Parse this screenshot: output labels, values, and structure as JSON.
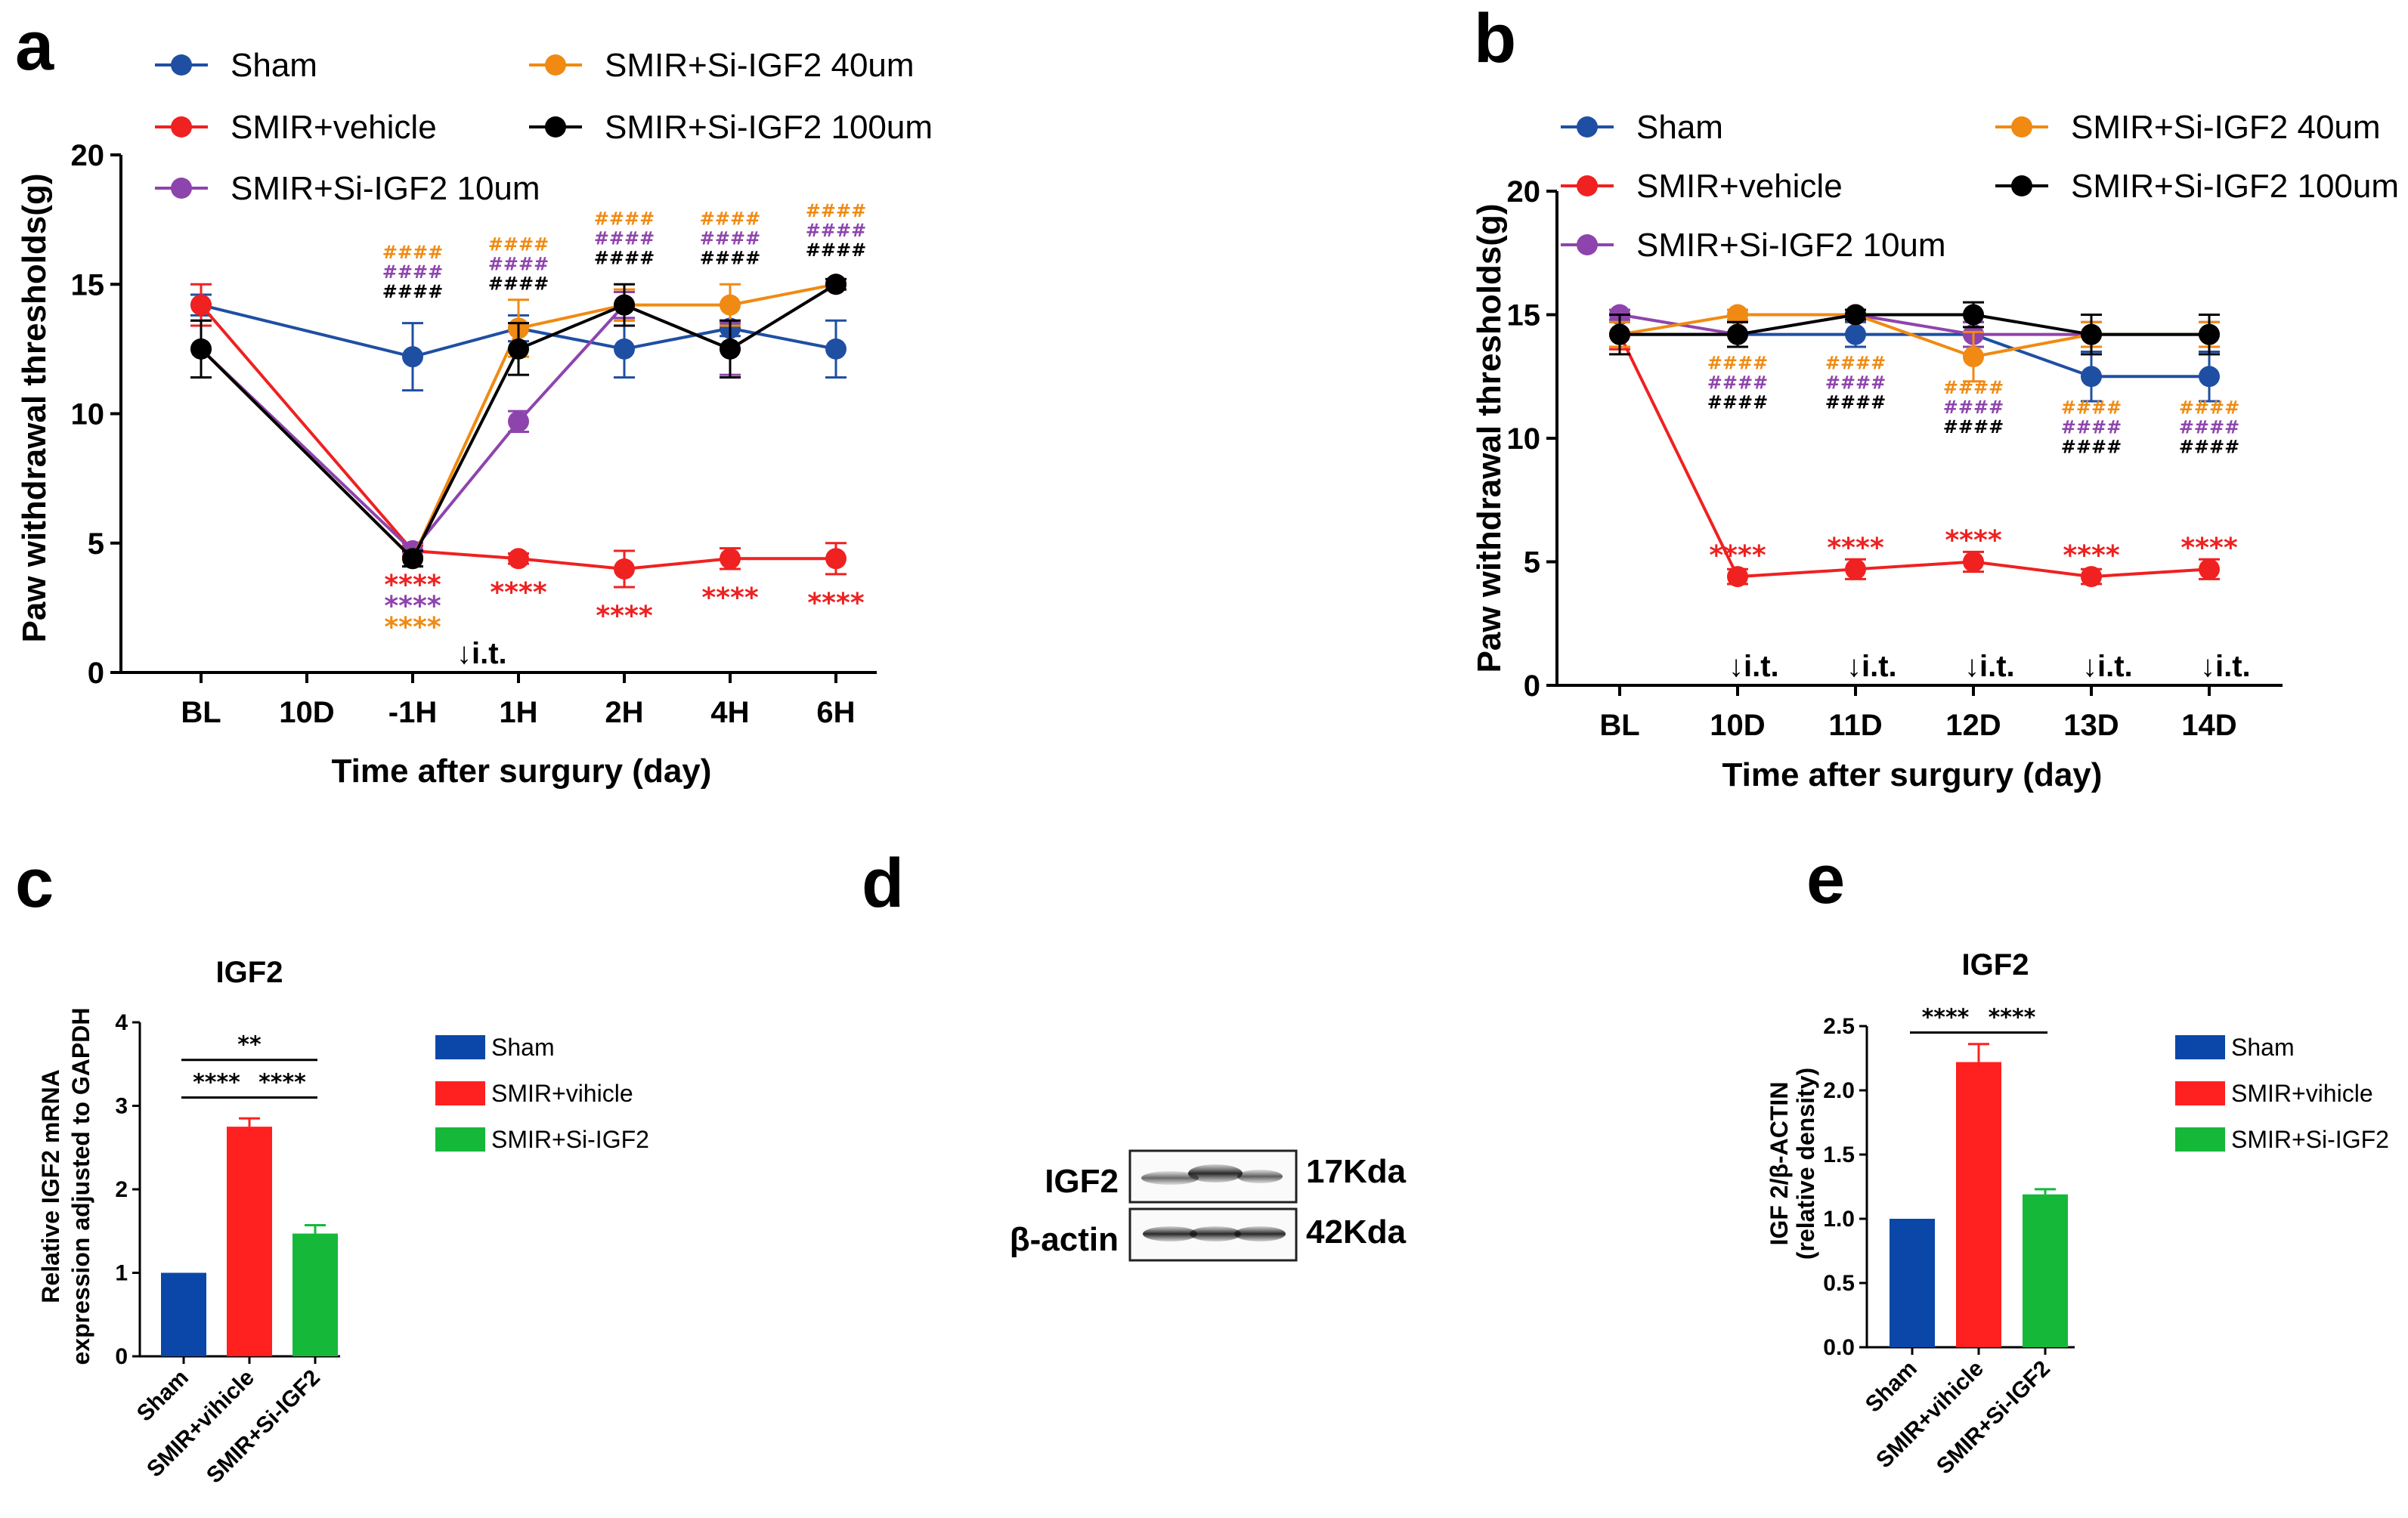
{
  "colors": {
    "sham": "#1f4fa3",
    "vehicle": "#ef2121",
    "si10": "#8e44ad",
    "si40": "#f08a12",
    "si100": "#000000",
    "bar_sham": "#0a47a8",
    "bar_vehicle": "#ff2020",
    "bar_si": "#16b83a"
  },
  "panels": {
    "a": "a",
    "b": "b",
    "c": "c",
    "d": "d",
    "e": "e"
  },
  "chart_data": [
    {
      "id": "a",
      "type": "line",
      "ylabel": "Paw  withdrawal thresholds(g)",
      "xlabel": "Time after surgury (day)",
      "ylim": [
        0,
        20
      ],
      "yticks": [
        "0",
        "5",
        "10",
        "15",
        "20"
      ],
      "categories": [
        "BL",
        "10D",
        "-1H",
        "1H",
        "2H",
        "4H",
        "6H"
      ],
      "legend": [
        {
          "name": "Sham",
          "color_key": "sham"
        },
        {
          "name": "SMIR+vehicle",
          "color_key": "vehicle"
        },
        {
          "name": "SMIR+Si-IGF2 10um",
          "color_key": "si10"
        },
        {
          "name": "SMIR+Si-IGF2 40um",
          "color_key": "si40"
        },
        {
          "name": "SMIR+Si-IGF2 100um",
          "color_key": "si100"
        }
      ],
      "series": [
        {
          "name": "Sham",
          "color_key": "sham",
          "x": [
            0,
            2,
            3,
            4,
            5,
            6
          ],
          "values": [
            14.2,
            12.2,
            13.3,
            12.5,
            13.3,
            12.5
          ],
          "err": [
            0.4,
            1.3,
            0.5,
            1.1,
            0.3,
            1.1
          ]
        },
        {
          "name": "SMIR+vehicle",
          "color_key": "vehicle",
          "x": [
            0,
            2,
            3,
            4,
            5,
            6
          ],
          "values": [
            14.2,
            4.7,
            4.4,
            4.0,
            4.4,
            4.4
          ],
          "err": [
            0.8,
            0.2,
            0.2,
            0.7,
            0.4,
            0.6
          ]
        },
        {
          "name": "SMIR+Si-IGF2 10um",
          "color_key": "si10",
          "x": [
            0,
            2,
            3,
            4,
            5,
            6
          ],
          "values": [
            12.5,
            4.7,
            9.7,
            14.2,
            12.5,
            15.0
          ],
          "err": [
            1.1,
            0.3,
            0.4,
            0.5,
            1.0,
            0.2
          ]
        },
        {
          "name": "SMIR+Si-IGF2 40um",
          "color_key": "si40",
          "x": [
            0,
            2,
            3,
            4,
            5,
            6
          ],
          "values": [
            12.5,
            4.4,
            13.3,
            14.2,
            14.2,
            15.0
          ],
          "err": [
            1.1,
            0.3,
            1.1,
            0.6,
            0.8,
            0.2
          ]
        },
        {
          "name": "SMIR+Si-IGF2 100um",
          "color_key": "si100",
          "x": [
            0,
            2,
            3,
            4,
            5,
            6
          ],
          "values": [
            12.5,
            4.4,
            12.5,
            14.2,
            12.5,
            15.0
          ],
          "err": [
            1.1,
            0.3,
            1.0,
            0.8,
            1.1,
            0.2
          ]
        }
      ],
      "stars": [
        {
          "x": 2,
          "lines": [
            {
              "text": "****",
              "color_key": "vehicle"
            },
            {
              "text": "****",
              "color_key": "si10"
            },
            {
              "text": "****",
              "color_key": "si40"
            }
          ]
        },
        {
          "x": 3,
          "lines": [
            {
              "text": "****",
              "color_key": "vehicle"
            }
          ]
        },
        {
          "x": 4,
          "lines": [
            {
              "text": "****",
              "color_key": "vehicle"
            }
          ]
        },
        {
          "x": 5,
          "lines": [
            {
              "text": "****",
              "color_key": "vehicle"
            }
          ]
        },
        {
          "x": 6,
          "lines": [
            {
              "text": "****",
              "color_key": "vehicle"
            }
          ]
        }
      ],
      "hashes": [
        {
          "x": 2,
          "y": 16.0,
          "lines": [
            {
              "text": "####",
              "color_key": "si40"
            },
            {
              "text": "####",
              "color_key": "si10"
            },
            {
              "text": "####",
              "color_key": "si100"
            }
          ]
        },
        {
          "x": 3,
          "y": 16.3,
          "lines": [
            {
              "text": "####",
              "color_key": "si40"
            },
            {
              "text": "####",
              "color_key": "si10"
            },
            {
              "text": "####",
              "color_key": "si100"
            }
          ]
        },
        {
          "x": 4,
          "y": 17.3,
          "lines": [
            {
              "text": "####",
              "color_key": "si40"
            },
            {
              "text": "####",
              "color_key": "si10"
            },
            {
              "text": "####",
              "color_key": "si100"
            }
          ]
        },
        {
          "x": 5,
          "y": 17.3,
          "lines": [
            {
              "text": "####",
              "color_key": "si40"
            },
            {
              "text": "####",
              "color_key": "si10"
            },
            {
              "text": "####",
              "color_key": "si100"
            }
          ]
        },
        {
          "x": 6,
          "y": 17.6,
          "lines": [
            {
              "text": "####",
              "color_key": "si40"
            },
            {
              "text": "####",
              "color_key": "si10"
            },
            {
              "text": "####",
              "color_key": "si100"
            }
          ]
        }
      ],
      "it_label": "↓i.t.",
      "it_x": 2.5
    },
    {
      "id": "b",
      "type": "line",
      "ylabel": "Paw  withdrawal thresholds(g)",
      "xlabel": "Time after surgury (day)",
      "ylim": [
        0,
        20
      ],
      "yticks": [
        "0",
        "5",
        "10",
        "15",
        "20"
      ],
      "categories": [
        "BL",
        "10D",
        "11D",
        "12D",
        "13D",
        "14D"
      ],
      "legend": [
        {
          "name": "Sham",
          "color_key": "sham"
        },
        {
          "name": "SMIR+vehicle",
          "color_key": "vehicle"
        },
        {
          "name": "SMIR+Si-IGF2 10um",
          "color_key": "si10"
        },
        {
          "name": "SMIR+Si-IGF2 40um",
          "color_key": "si40"
        },
        {
          "name": "SMIR+Si-IGF2 100um",
          "color_key": "si100"
        }
      ],
      "series": [
        {
          "name": "Sham",
          "color_key": "sham",
          "x": [
            0,
            1,
            2,
            3,
            4,
            5
          ],
          "values": [
            14.2,
            14.2,
            14.2,
            14.2,
            12.5,
            12.5
          ],
          "err": [
            0.5,
            0.5,
            0.5,
            0.5,
            1.0,
            1.0
          ]
        },
        {
          "name": "SMIR+vehicle",
          "color_key": "vehicle",
          "x": [
            0,
            1,
            2,
            3,
            4,
            5
          ],
          "values": [
            14.2,
            4.4,
            4.7,
            5.0,
            4.4,
            4.7
          ],
          "err": [
            0.6,
            0.3,
            0.4,
            0.4,
            0.3,
            0.4
          ]
        },
        {
          "name": "SMIR+Si-IGF2 10um",
          "color_key": "si10",
          "x": [
            0,
            1,
            2,
            3,
            4,
            5
          ],
          "values": [
            15.0,
            14.2,
            15.0,
            14.2,
            14.2,
            14.2
          ],
          "err": [
            0.2,
            0.5,
            0.2,
            0.5,
            0.5,
            0.5
          ]
        },
        {
          "name": "SMIR+Si-IGF2 40um",
          "color_key": "si40",
          "x": [
            0,
            1,
            2,
            3,
            4,
            5
          ],
          "values": [
            14.2,
            15.0,
            15.0,
            13.3,
            14.2,
            14.2
          ],
          "err": [
            0.5,
            0.2,
            0.2,
            1.0,
            0.5,
            0.5
          ]
        },
        {
          "name": "SMIR+Si-IGF2 100um",
          "color_key": "si100",
          "x": [
            0,
            1,
            2,
            3,
            4,
            5
          ],
          "values": [
            14.2,
            14.2,
            15.0,
            15.0,
            14.2,
            14.2
          ],
          "err": [
            0.8,
            0.5,
            0.2,
            0.5,
            0.8,
            0.8
          ]
        }
      ],
      "stars": [
        {
          "x": 1,
          "y": 4.9,
          "lines": [
            {
              "text": "****",
              "color_key": "vehicle"
            }
          ]
        },
        {
          "x": 2,
          "y": 5.2,
          "lines": [
            {
              "text": "****",
              "color_key": "vehicle"
            }
          ]
        },
        {
          "x": 3,
          "y": 5.5,
          "lines": [
            {
              "text": "****",
              "color_key": "vehicle"
            }
          ]
        },
        {
          "x": 4,
          "y": 4.9,
          "lines": [
            {
              "text": "****",
              "color_key": "vehicle"
            }
          ]
        },
        {
          "x": 5,
          "y": 5.2,
          "lines": [
            {
              "text": "****",
              "color_key": "vehicle"
            }
          ]
        }
      ],
      "hashes": [
        {
          "x": 1,
          "y": 12.8,
          "lines": [
            {
              "text": "####",
              "color_key": "si40"
            },
            {
              "text": "####",
              "color_key": "si10"
            },
            {
              "text": "####",
              "color_key": "si100"
            }
          ]
        },
        {
          "x": 2,
          "y": 12.8,
          "lines": [
            {
              "text": "####",
              "color_key": "si40"
            },
            {
              "text": "####",
              "color_key": "si10"
            },
            {
              "text": "####",
              "color_key": "si100"
            }
          ]
        },
        {
          "x": 3,
          "y": 11.8,
          "lines": [
            {
              "text": "####",
              "color_key": "si40"
            },
            {
              "text": "####",
              "color_key": "si10"
            },
            {
              "text": "####",
              "color_key": "si100"
            }
          ]
        },
        {
          "x": 4,
          "y": 11.0,
          "lines": [
            {
              "text": "####",
              "color_key": "si40"
            },
            {
              "text": "####",
              "color_key": "si10"
            },
            {
              "text": "####",
              "color_key": "si100"
            }
          ]
        },
        {
          "x": 5,
          "y": 11.0,
          "lines": [
            {
              "text": "####",
              "color_key": "si40"
            },
            {
              "text": "####",
              "color_key": "si10"
            },
            {
              "text": "####",
              "color_key": "si100"
            }
          ]
        }
      ],
      "it_label": "↓i.t.",
      "it_x": [
        1,
        2,
        3,
        4,
        5
      ]
    },
    {
      "id": "c",
      "type": "bar",
      "title": "IGF2",
      "ylabel_lines": [
        "Relative IGF2 mRNA",
        "expression adjusted to GAPDH"
      ],
      "ylim": [
        0,
        4
      ],
      "yticks": [
        "0",
        "1",
        "2",
        "3",
        "4"
      ],
      "categories": [
        "Sham",
        "SMIR+vihicle",
        "SMIR+Si-IGF2"
      ],
      "values": [
        1.0,
        2.75,
        1.47
      ],
      "err": [
        0,
        0.1,
        0.1
      ],
      "color_keys": [
        "bar_sham",
        "bar_vehicle",
        "bar_si"
      ],
      "legend": [
        {
          "name": "Sham",
          "color_key": "bar_sham"
        },
        {
          "name": "SMIR+vihicle",
          "color_key": "bar_vehicle"
        },
        {
          "name": "SMIR+Si-IGF2",
          "color_key": "bar_si"
        }
      ],
      "significance": [
        {
          "from": 0,
          "to": 2,
          "label": "**",
          "level": 3.55
        },
        {
          "from": 0,
          "to": 1,
          "label": "****",
          "level": 3.1
        },
        {
          "from": 1,
          "to": 2,
          "label": "****",
          "level": 3.1
        }
      ]
    },
    {
      "id": "e",
      "type": "bar",
      "title": "IGF2",
      "ylabel_lines": [
        "IGF 2/β-ACTIN",
        "(relative density)"
      ],
      "ylim": [
        0,
        2.5
      ],
      "yticks": [
        "0.0",
        "0.5",
        "1.0",
        "1.5",
        "2.0",
        "2.5"
      ],
      "categories": [
        "Sham",
        "SMIR+vihicle",
        "SMIR+Si-IGF2"
      ],
      "values": [
        1.0,
        2.22,
        1.19
      ],
      "err": [
        0,
        0.14,
        0.04
      ],
      "color_keys": [
        "bar_sham",
        "bar_vehicle",
        "bar_si"
      ],
      "legend": [
        {
          "name": "Sham",
          "color_key": "bar_sham"
        },
        {
          "name": "SMIR+vihicle",
          "color_key": "bar_vehicle"
        },
        {
          "name": "SMIR+Si-IGF2",
          "color_key": "bar_si"
        }
      ],
      "significance": [
        {
          "from": 0,
          "to": 1,
          "label": "****",
          "level": 2.45
        },
        {
          "from": 1,
          "to": 2,
          "label": "****",
          "level": 2.45
        }
      ]
    }
  ],
  "blot": {
    "rows": [
      {
        "label": "IGF2",
        "size": "17Kda"
      },
      {
        "label": "β-actin",
        "size": "42Kda"
      }
    ]
  }
}
